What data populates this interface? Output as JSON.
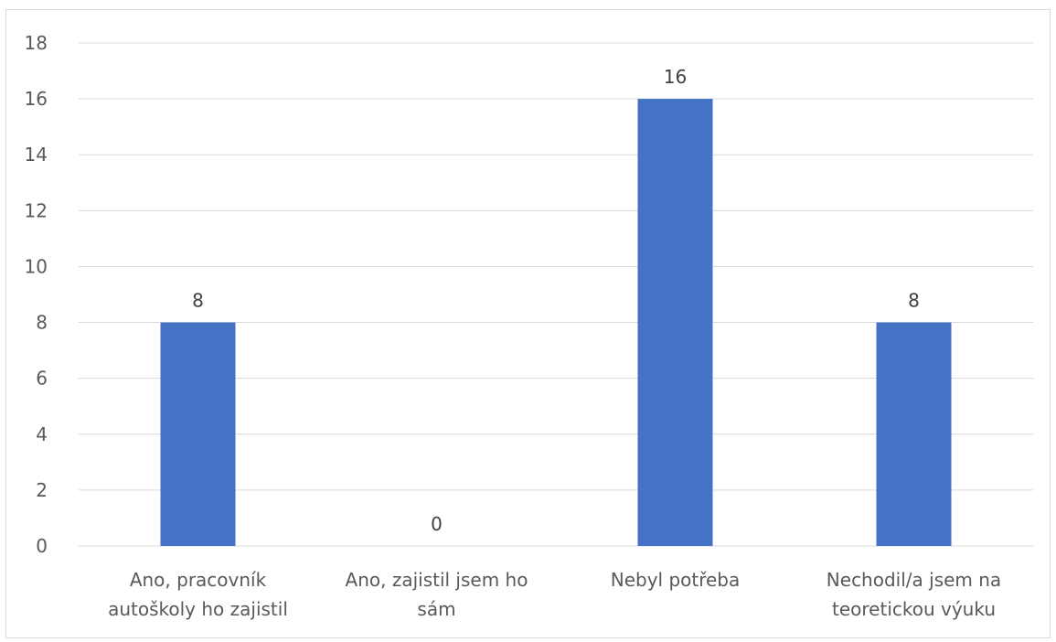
{
  "chart_data": {
    "type": "bar",
    "categories": [
      [
        "Ano, pracovník",
        "autoškoly ho zajistil"
      ],
      [
        "Ano, zajistil jsem ho",
        "sám"
      ],
      [
        "Nebyl potřeba"
      ],
      [
        "Nechodil/a jsem na",
        "teoretickou výuku"
      ]
    ],
    "values": [
      8,
      0,
      16,
      8
    ],
    "data_labels": [
      "8",
      "0",
      "16",
      "8"
    ],
    "ylim": [
      0,
      18
    ],
    "yticks": [
      0,
      2,
      4,
      6,
      8,
      10,
      12,
      14,
      16,
      18
    ],
    "grid": true,
    "legend": "none",
    "colors": {
      "bar": "#4472c4",
      "grid": "#d9d9d9",
      "text": "#595959"
    }
  }
}
